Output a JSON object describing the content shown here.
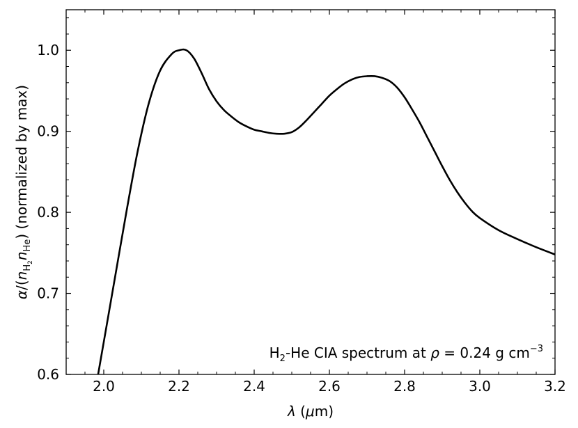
{
  "chart_data": {
    "type": "line",
    "title": "",
    "xlabel": {
      "symbol": "λ",
      "unit_open": " (",
      "unit_mu": "μ",
      "unit_rest": "m)"
    },
    "ylabel": {
      "alpha": "α",
      "slash": "/(",
      "n1": "n",
      "sub1_main": "H",
      "sub1_sub": "2",
      "n2": "n",
      "sub2": "He",
      "close": ")",
      "rest": " (normalized by max)"
    },
    "xlim": [
      1.9,
      3.2
    ],
    "ylim": [
      0.6,
      1.05
    ],
    "xticks": [
      "2.0",
      "2.2",
      "2.4",
      "2.6",
      "2.8",
      "3.0",
      "3.2"
    ],
    "xtick_values": [
      2.0,
      2.2,
      2.4,
      2.6,
      2.8,
      3.0,
      3.2
    ],
    "yticks": [
      "0.6",
      "0.7",
      "0.8",
      "0.9",
      "1.0"
    ],
    "ytick_values": [
      0.6,
      0.7,
      0.8,
      0.9,
      1.0
    ],
    "grid": false,
    "annotation": {
      "h": "H",
      "h_sub": "2",
      "text1": "-He CIA spectrum at ",
      "rho": "ρ",
      "text2": " = 0.24 g cm",
      "exp": "−3"
    },
    "series": [
      {
        "color": "#000000",
        "x": [
          1.985,
          2.0,
          2.03,
          2.06,
          2.09,
          2.12,
          2.15,
          2.18,
          2.2,
          2.22,
          2.24,
          2.26,
          2.28,
          2.3,
          2.32,
          2.34,
          2.36,
          2.38,
          2.4,
          2.42,
          2.44,
          2.46,
          2.48,
          2.5,
          2.52,
          2.54,
          2.56,
          2.58,
          2.6,
          2.62,
          2.64,
          2.66,
          2.68,
          2.7,
          2.72,
          2.74,
          2.76,
          2.78,
          2.8,
          2.82,
          2.84,
          2.86,
          2.88,
          2.9,
          2.92,
          2.94,
          2.96,
          2.98,
          3.0,
          3.05,
          3.1,
          3.15,
          3.2
        ],
        "y": [
          0.6,
          0.64,
          0.72,
          0.8,
          0.875,
          0.935,
          0.975,
          0.995,
          1.0,
          1.0,
          0.99,
          0.972,
          0.952,
          0.937,
          0.926,
          0.918,
          0.911,
          0.906,
          0.902,
          0.9,
          0.898,
          0.897,
          0.897,
          0.899,
          0.905,
          0.914,
          0.924,
          0.934,
          0.944,
          0.952,
          0.959,
          0.964,
          0.967,
          0.968,
          0.968,
          0.966,
          0.962,
          0.954,
          0.942,
          0.927,
          0.911,
          0.893,
          0.875,
          0.857,
          0.84,
          0.825,
          0.812,
          0.801,
          0.793,
          0.778,
          0.767,
          0.757,
          0.748
        ]
      }
    ]
  }
}
